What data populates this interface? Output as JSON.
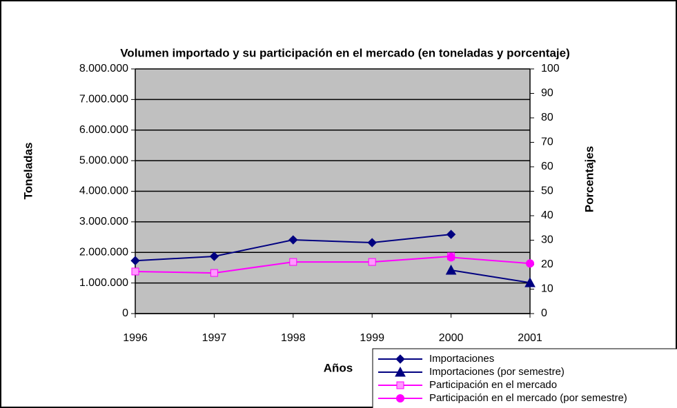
{
  "chart_data": {
    "type": "line",
    "title": "Volumen importado y su participación en el mercado (en toneladas y porcentaje)",
    "x_label": "Años",
    "y_label": "Toneladas",
    "y2_label": "Porcentajes",
    "x": [
      1996,
      1997,
      1998,
      1999,
      2000,
      2001
    ],
    "xlim": [
      1996,
      2001
    ],
    "xticks": [
      1996,
      1997,
      1998,
      1999,
      2000,
      2001
    ],
    "ylim": [
      0,
      8000000
    ],
    "yticks": [
      0,
      {
        "value": 1000000,
        "label": "1.000.000"
      },
      {
        "value": 2000000,
        "label": "2.000.000"
      },
      {
        "value": 3000000,
        "label": "3.000.000"
      },
      {
        "value": 4000000,
        "label": "4.000.000"
      },
      {
        "value": 5000000,
        "label": "5.000.000"
      },
      {
        "value": 6000000,
        "label": "6.000.000"
      },
      {
        "value": 7000000,
        "label": "7.000.000"
      },
      {
        "value": 8000000,
        "label": "8.000.000"
      }
    ],
    "y2lim": [
      0,
      100
    ],
    "y2ticks": [
      0,
      10,
      20,
      30,
      40,
      50,
      60,
      70,
      80,
      90,
      100
    ],
    "grid": true,
    "plot_background": "#c0c0c0",
    "legend": "lower right",
    "series": [
      {
        "name": "Importaciones",
        "color": "#000080",
        "marker": "diamond",
        "values": [
          1730000,
          1870000,
          2410000,
          2320000,
          2590000,
          null
        ]
      },
      {
        "name": "Importaciones (por semestre)",
        "color": "#000080",
        "marker": "triangle",
        "values": [
          null,
          null,
          null,
          null,
          1420000,
          1010000
        ]
      },
      {
        "name": "Participación en el mercado",
        "color": "#ff00ff",
        "marker": "square",
        "axis": "y2",
        "values": [
          17.2,
          16.6,
          21.1,
          21.1,
          23.4,
          null
        ]
      },
      {
        "name": "Participación en el mercado (por semestre)",
        "color": "#ff00ff",
        "marker": "circle",
        "axis": "y2",
        "values": [
          null,
          null,
          null,
          null,
          23,
          20.5
        ]
      }
    ]
  }
}
